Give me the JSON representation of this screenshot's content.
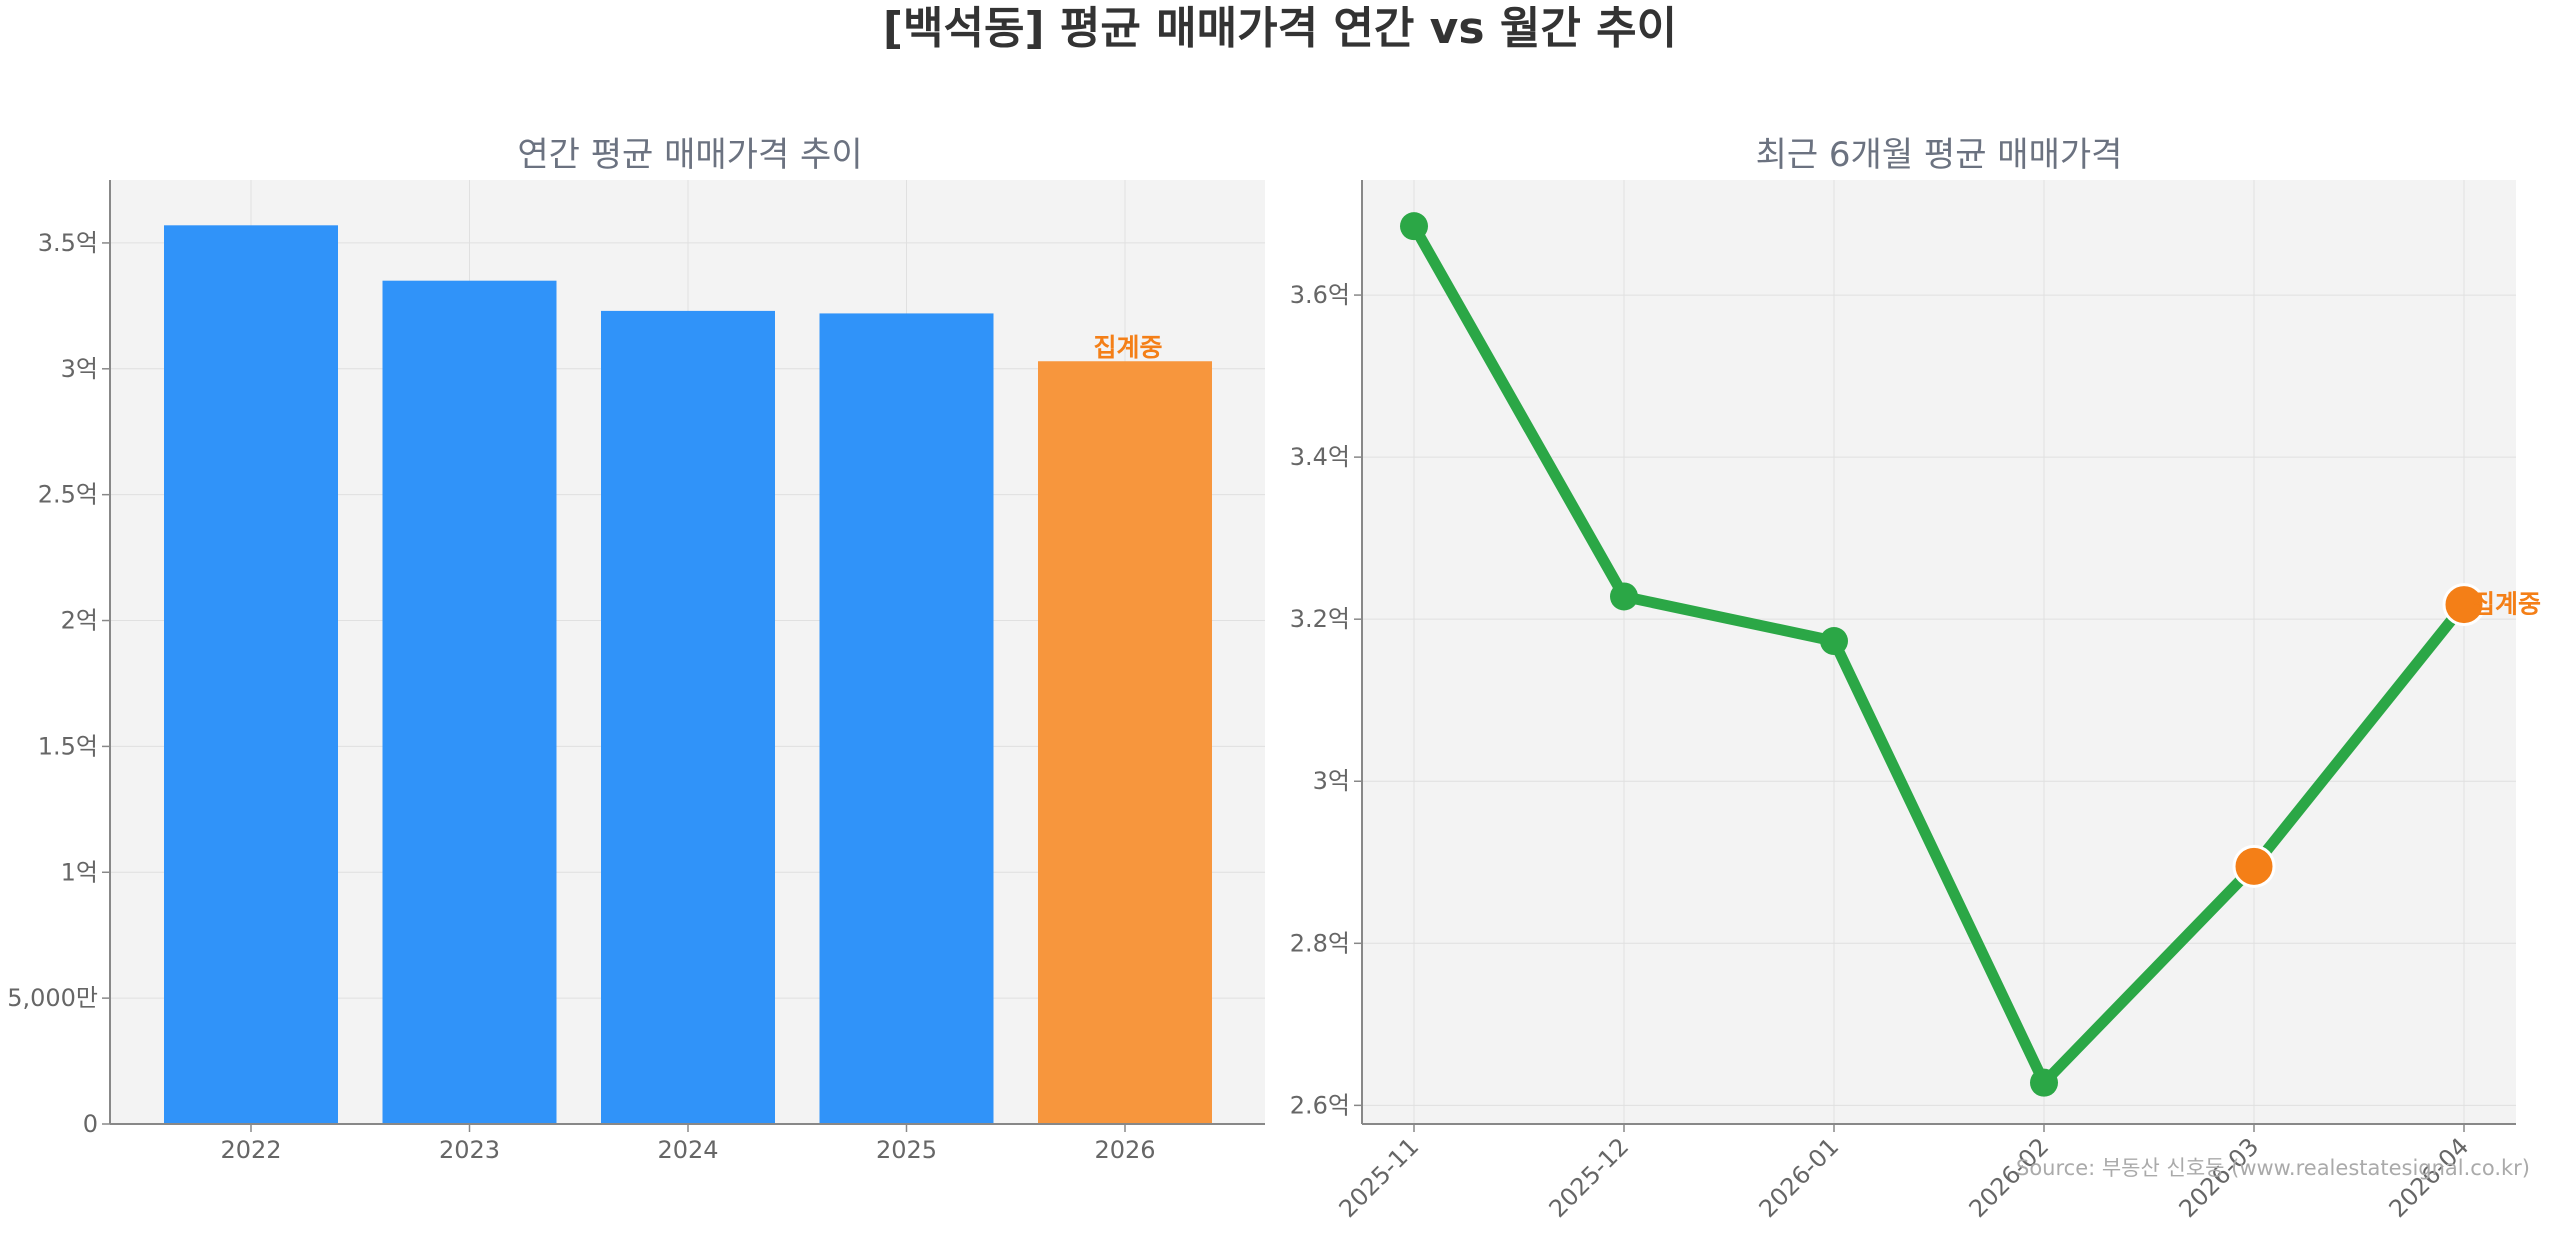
{
  "title": "[백석동] 평균 매매가격 연간 vs 월간 추이",
  "source": "Source: 부동산 신호등 (www.realestatesignal.co.kr)",
  "colors": {
    "bar": "#3093f9",
    "bar_highlight": "#f7963d",
    "line": "#2ba746",
    "point_highlight": "#f47f17",
    "note": "#f47f17",
    "panel_bg": "#f3f3f3"
  },
  "chart_data": [
    {
      "type": "bar",
      "title": "연간 평균 매매가격 추이",
      "categories": [
        "2022",
        "2023",
        "2024",
        "2025",
        "2026"
      ],
      "values": [
        3.57,
        3.35,
        3.23,
        3.22,
        3.03
      ],
      "unit": "억",
      "highlight": [
        false,
        false,
        false,
        false,
        true
      ],
      "annotations": [
        {
          "category": "2026",
          "text": "집계중"
        }
      ],
      "ylim": [
        0,
        3.75
      ],
      "yticks": [
        {
          "value": 0,
          "label": "0"
        },
        {
          "value": 0.5,
          "label": "5,000만"
        },
        {
          "value": 1.0,
          "label": "1억"
        },
        {
          "value": 1.5,
          "label": "1.5억"
        },
        {
          "value": 2.0,
          "label": "2억"
        },
        {
          "value": 2.5,
          "label": "2.5억"
        },
        {
          "value": 3.0,
          "label": "3억"
        },
        {
          "value": 3.5,
          "label": "3.5억"
        }
      ],
      "grid": true
    },
    {
      "type": "line",
      "title": "최근 6개월 평균 매매가격",
      "categories": [
        "2025-11",
        "2025-12",
        "2026-01",
        "2026-02",
        "2026-03",
        "2026-04"
      ],
      "values": [
        3.685,
        3.228,
        3.173,
        2.628,
        2.895,
        3.218
      ],
      "unit": "억",
      "highlight": [
        false,
        false,
        false,
        false,
        true,
        true
      ],
      "annotations": [
        {
          "category": "2026-04",
          "text": "집계중"
        }
      ],
      "ylim": [
        2.577,
        3.742
      ],
      "yticks": [
        {
          "value": 2.6,
          "label": "2.6억"
        },
        {
          "value": 2.8,
          "label": "2.8억"
        },
        {
          "value": 3.0,
          "label": "3억"
        },
        {
          "value": 3.2,
          "label": "3.2억"
        },
        {
          "value": 3.4,
          "label": "3.4억"
        },
        {
          "value": 3.6,
          "label": "3.6억"
        }
      ],
      "grid": true
    }
  ]
}
